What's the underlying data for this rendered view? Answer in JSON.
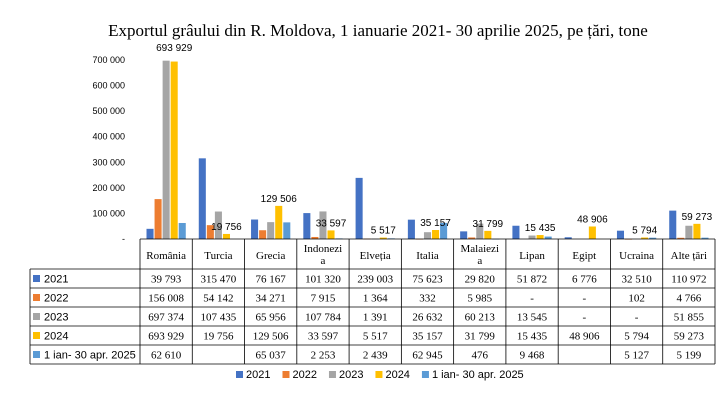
{
  "chart_data": {
    "type": "bar",
    "title": "Exportul grâului din R. Moldova, 1 ianuarie 2021- 30 aprilie 2025, pe țări, tone",
    "categories": [
      "România",
      "Turcia",
      "Grecia",
      "Indonezia",
      "Elveția",
      "Italia",
      "Malaiezia",
      "Lipan",
      "Egipt",
      "Ucraina",
      "Alte țări"
    ],
    "category_display": [
      [
        "România"
      ],
      [
        "Turcia"
      ],
      [
        "Grecia"
      ],
      [
        "Indonezi",
        "a"
      ],
      [
        "Elveția"
      ],
      [
        "Italia"
      ],
      [
        "Malaiezi",
        "a"
      ],
      [
        "Lipan"
      ],
      [
        "Egipt"
      ],
      [
        "Ucraina"
      ],
      [
        "Alte țări"
      ]
    ],
    "series": [
      {
        "name": "2021",
        "color": "#4472C4",
        "values": [
          39793,
          315470,
          76167,
          101320,
          239003,
          75623,
          29820,
          51872,
          6776,
          32510,
          110972
        ]
      },
      {
        "name": "2022",
        "color": "#ED7D31",
        "values": [
          156008,
          54142,
          34271,
          7915,
          1364,
          332,
          5985,
          null,
          null,
          102,
          4766
        ]
      },
      {
        "name": "2023",
        "color": "#A5A5A5",
        "values": [
          697374,
          107435,
          65956,
          107784,
          1391,
          26632,
          60213,
          13545,
          null,
          null,
          51855
        ]
      },
      {
        "name": "2024",
        "color": "#FFC000",
        "values": [
          693929,
          19756,
          129506,
          33597,
          5517,
          35157,
          31799,
          15435,
          48906,
          5794,
          59273
        ]
      },
      {
        "name": "1 ian- 30 apr. 2025",
        "color": "#5B9BD5",
        "values": [
          62610,
          null,
          65037,
          2253,
          2439,
          62945,
          476,
          9468,
          null,
          5127,
          5199
        ]
      }
    ],
    "table_text": [
      [
        "39 793",
        "315 470",
        "76 167",
        "101 320",
        "239 003",
        "75 623",
        "29 820",
        "51 872",
        "6 776",
        "32 510",
        "110 972"
      ],
      [
        "156 008",
        "54 142",
        "34 271",
        "7 915",
        "1 364",
        "332",
        "5 985",
        "-",
        "-",
        "102",
        "4 766"
      ],
      [
        "697 374",
        "107 435",
        "65 956",
        "107 784",
        "1 391",
        "26 632",
        "60 213",
        "13 545",
        "-",
        "-",
        "51 855"
      ],
      [
        "693 929",
        "19 756",
        "129 506",
        "33 597",
        "5 517",
        "35 157",
        "31 799",
        "15 435",
        "48 906",
        "5 794",
        "59 273"
      ],
      [
        "62 610",
        "",
        "65 037",
        "2 253",
        "2 439",
        "62 945",
        "476",
        "9 468",
        "",
        "5 127",
        "5 199"
      ]
    ],
    "data_labels": [
      {
        "category": 0,
        "series": 3,
        "text": "693 929"
      },
      {
        "category": 1,
        "series": 3,
        "text": "19 756"
      },
      {
        "category": 2,
        "series": 3,
        "text": "129 506"
      },
      {
        "category": 3,
        "series": 3,
        "text": "33 597"
      },
      {
        "category": 4,
        "series": 3,
        "text": "5 517"
      },
      {
        "category": 5,
        "series": 3,
        "text": "35 157"
      },
      {
        "category": 6,
        "series": 3,
        "text": "31 799"
      },
      {
        "category": 7,
        "series": 3,
        "text": "15 435"
      },
      {
        "category": 8,
        "series": 3,
        "text": "48 906"
      },
      {
        "category": 9,
        "series": 3,
        "text": "5 794"
      },
      {
        "category": 10,
        "series": 3,
        "text": "59 273"
      }
    ],
    "yticks": [
      {
        "value": 0,
        "label": "-"
      },
      {
        "value": 100000,
        "label": "100 000"
      },
      {
        "value": 200000,
        "label": "200 000"
      },
      {
        "value": 300000,
        "label": "300 000"
      },
      {
        "value": 400000,
        "label": "400 000"
      },
      {
        "value": 500000,
        "label": "500 000"
      },
      {
        "value": 600000,
        "label": "600 000"
      },
      {
        "value": 700000,
        "label": "700 000"
      }
    ],
    "ylim": [
      0,
      720000
    ],
    "grid": false,
    "legend_position": "bottom"
  }
}
